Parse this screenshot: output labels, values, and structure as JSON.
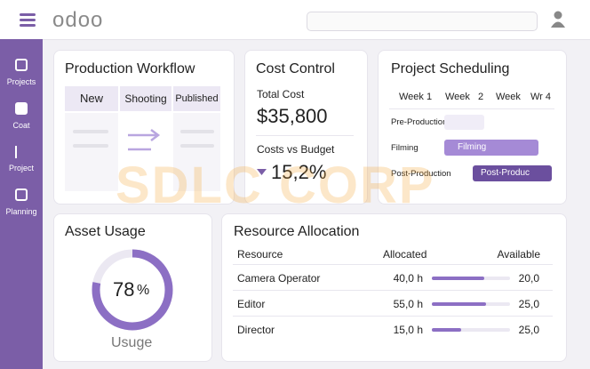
{
  "header": {
    "logo": "odoo"
  },
  "sidebar": {
    "items": [
      {
        "label": "Projects"
      },
      {
        "label": "Coat"
      },
      {
        "label": "Project"
      },
      {
        "label": "Planning"
      }
    ]
  },
  "watermark": "SDLC CORP",
  "production_workflow": {
    "title": "Production Workflow",
    "stages": [
      "New",
      "Shooting",
      "Published"
    ]
  },
  "cost_control": {
    "title": "Cost Control",
    "total_cost_label": "Total Cost",
    "total_cost": "$35,800",
    "budget_label": "Costs vs Budget",
    "budget_variance": "15,2%"
  },
  "project_scheduling": {
    "title": "Project Scheduling",
    "weeks": [
      "Week 1",
      "Week",
      "2",
      "Week",
      "Wr 4"
    ],
    "rows": [
      {
        "phase": "Pre-Production"
      },
      {
        "phase": "Filming",
        "bar": "Filming"
      },
      {
        "phase": "Post-Production",
        "bar": "Post-Produc"
      }
    ]
  },
  "asset_usage": {
    "title": "Asset Usage",
    "percent": 78,
    "unit": "%",
    "caption": "Usuge"
  },
  "resource_allocation": {
    "title": "Resource Allocation",
    "columns": [
      "Resource",
      "Allocated",
      "Available"
    ],
    "rows": [
      {
        "resource": "Camera Operator",
        "allocated": {
          "value": 40,
          "label": "40,0 h"
        },
        "available": {
          "value": 20,
          "label": "20,0"
        }
      },
      {
        "resource": "Editor",
        "allocated": {
          "value": 55,
          "label": "55,0 h"
        },
        "available": {
          "value": 25,
          "label": "25,0"
        }
      },
      {
        "resource": "Director",
        "allocated": {
          "value": 15,
          "label": "15,0 h"
        },
        "available": {
          "value": 25,
          "label": "25,0"
        }
      }
    ]
  }
}
